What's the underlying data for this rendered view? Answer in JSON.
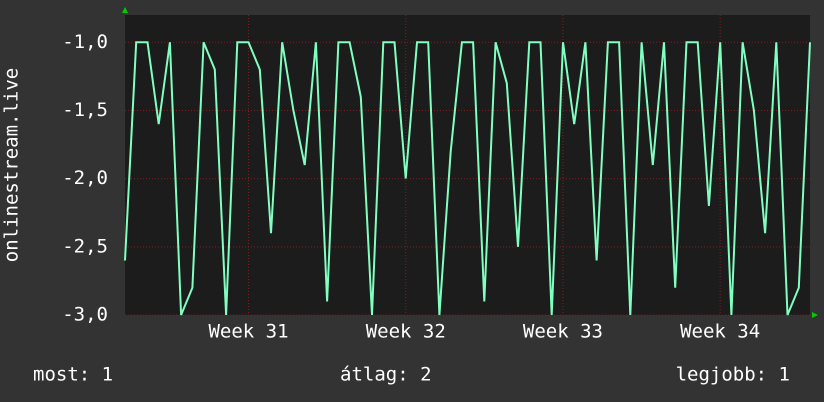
{
  "chart_data": {
    "type": "line",
    "y_label": "onlinestream.live",
    "x": [
      0,
      0.5,
      1,
      1.5,
      2,
      2.5,
      3,
      3.5,
      4,
      4.5,
      5,
      5.5,
      6,
      6.5,
      7,
      7.5,
      8,
      8.5,
      9,
      9.5,
      10,
      10.5,
      11,
      11.5,
      12,
      12.5,
      13,
      13.5,
      14,
      14.5,
      15,
      15.5,
      16,
      16.5,
      17,
      17.5,
      18,
      18.5,
      19,
      19.5,
      20,
      20.5,
      21,
      21.5,
      22,
      22.5,
      23,
      23.5,
      24,
      24.5,
      25,
      25.5,
      26,
      26.5,
      27,
      27.5,
      28,
      28.5,
      29,
      29.5,
      30,
      30.5
    ],
    "series": [
      {
        "color": "#80ffc0",
        "values": [
          -2.6,
          -1,
          -1,
          -1.6,
          -1,
          -3,
          -2.8,
          -1,
          -1.2,
          -3,
          -1,
          -1,
          -1.2,
          -2.4,
          -1,
          -1.5,
          -1.9,
          -1,
          -2.9,
          -1,
          -1,
          -1.4,
          -3,
          -1,
          -1,
          -2,
          -1,
          -1,
          -3,
          -1.8,
          -1,
          -1,
          -2.9,
          -1,
          -1.3,
          -2.5,
          -1,
          -1,
          -3,
          -1,
          -1.6,
          -1,
          -2.6,
          -1,
          -1,
          -3,
          -1,
          -1.9,
          -1,
          -2.8,
          -1,
          -1,
          -2.2,
          -1,
          -3,
          -1,
          -1.5,
          -2.4,
          -1,
          -3,
          -2.8,
          -1
        ]
      }
    ],
    "xlim": [
      0,
      30.5
    ],
    "xticks": [
      {
        "value": 5.5,
        "label": "Week 31"
      },
      {
        "value": 12.5,
        "label": "Week 32"
      },
      {
        "value": 19.5,
        "label": "Week 33"
      },
      {
        "value": 26.5,
        "label": "Week 34"
      }
    ],
    "ylim": [
      -3,
      -0.8
    ],
    "yticks": [
      {
        "value": -3,
        "label": "-3,0"
      },
      {
        "value": -2.5,
        "label": "-2,5"
      },
      {
        "value": -2,
        "label": "-2,0"
      },
      {
        "value": -1.5,
        "label": "-1,5"
      },
      {
        "value": -1,
        "label": "-1,0"
      }
    ],
    "grid": true,
    "stats": [
      "most: 1",
      "átlag: 2",
      "legjobb: 1"
    ]
  }
}
